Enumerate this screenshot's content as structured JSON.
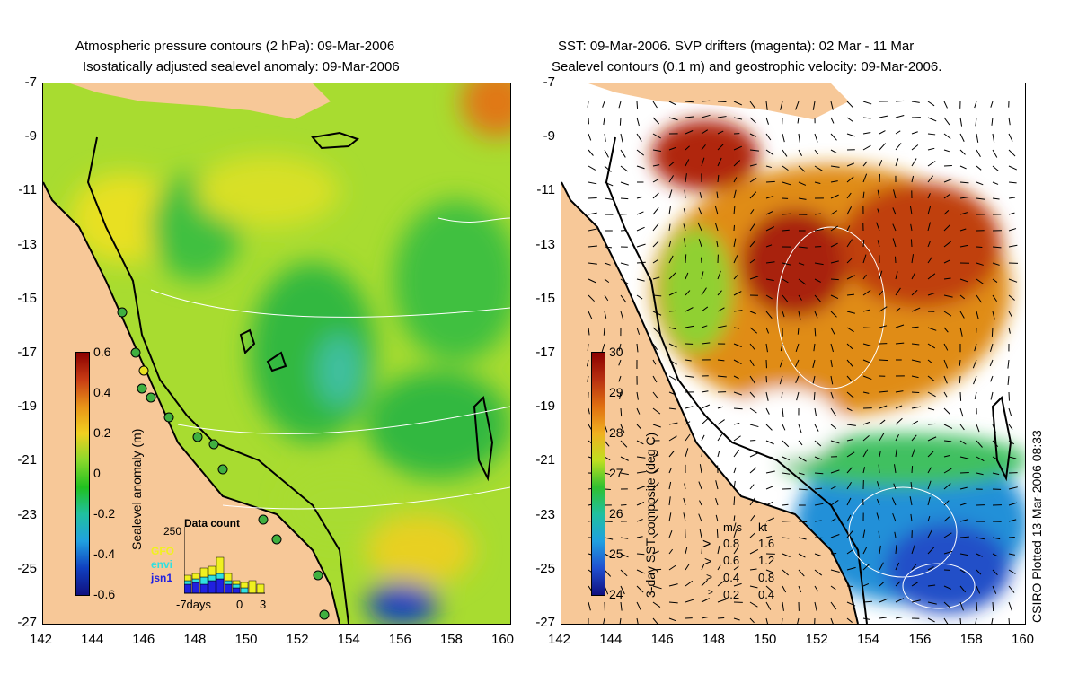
{
  "left_panel": {
    "title_line1": "Atmospheric pressure contours (2 hPa): 09-Mar-2006",
    "title_line2": "Isostatically adjusted sealevel anomaly: 09-Mar-2006",
    "colorbar": {
      "title": "Sealevel anomaly (m)",
      "ticks": [
        "0.6",
        "0.4",
        "0.2",
        "0",
        "-0.2",
        "-0.4",
        "-0.6"
      ],
      "colors": [
        "#8b0000",
        "#c83c14",
        "#e89418",
        "#f0d020",
        "#8ad82c",
        "#20c020",
        "#20c0a0",
        "#20a0e0",
        "#1040c0",
        "#101080"
      ]
    },
    "histogram": {
      "title": "Data count",
      "ymax_label": "250",
      "series": [
        {
          "name": "GFO",
          "color": "#f0f020"
        },
        {
          "name": "envi",
          "color": "#30e0e0"
        },
        {
          "name": "jsn1",
          "color": "#2020e0"
        }
      ],
      "x_labels": [
        "-7days",
        "0",
        "3"
      ]
    }
  },
  "right_panel": {
    "title_line1": "SST: 09-Mar-2006. SVP drifters (magenta): 02 Mar - 11 Mar",
    "title_line2": "Sealevel contours (0.1 m) and geostrophic velocity: 09-Mar-2006.",
    "colorbar": {
      "title": "3-day SST composite (deg C)",
      "ticks": [
        "30",
        "29",
        "28",
        "27",
        "26",
        "25",
        "24"
      ],
      "colors": [
        "#8b0000",
        "#b83010",
        "#e07010",
        "#f0b020",
        "#c0e020",
        "#30c030",
        "#20c0a0",
        "#20a0e0",
        "#2050d0",
        "#101080"
      ]
    },
    "velocity_legend": {
      "header_ms": "m/s",
      "header_kt": "kt",
      "rows": [
        {
          "ms": "0.8",
          "kt": "1.6"
        },
        {
          "ms": "0.6",
          "kt": "1.2"
        },
        {
          "ms": "0.4",
          "kt": "0.8"
        },
        {
          "ms": "0.2",
          "kt": "0.4"
        }
      ]
    },
    "credit": "CSIRO Plotted 13-Mar-2006 08:33"
  },
  "axes": {
    "lat_labels": [
      "-7",
      "-9",
      "-11",
      "-13",
      "-15",
      "-17",
      "-19",
      "-21",
      "-23",
      "-25",
      "-27"
    ],
    "lon_labels": [
      "142",
      "144",
      "146",
      "148",
      "150",
      "152",
      "154",
      "156",
      "158",
      "160"
    ]
  },
  "colors": {
    "land": "#f7c898",
    "coast": "#000000",
    "contour": "#ffffff",
    "tide_gauge": "#40b040"
  }
}
